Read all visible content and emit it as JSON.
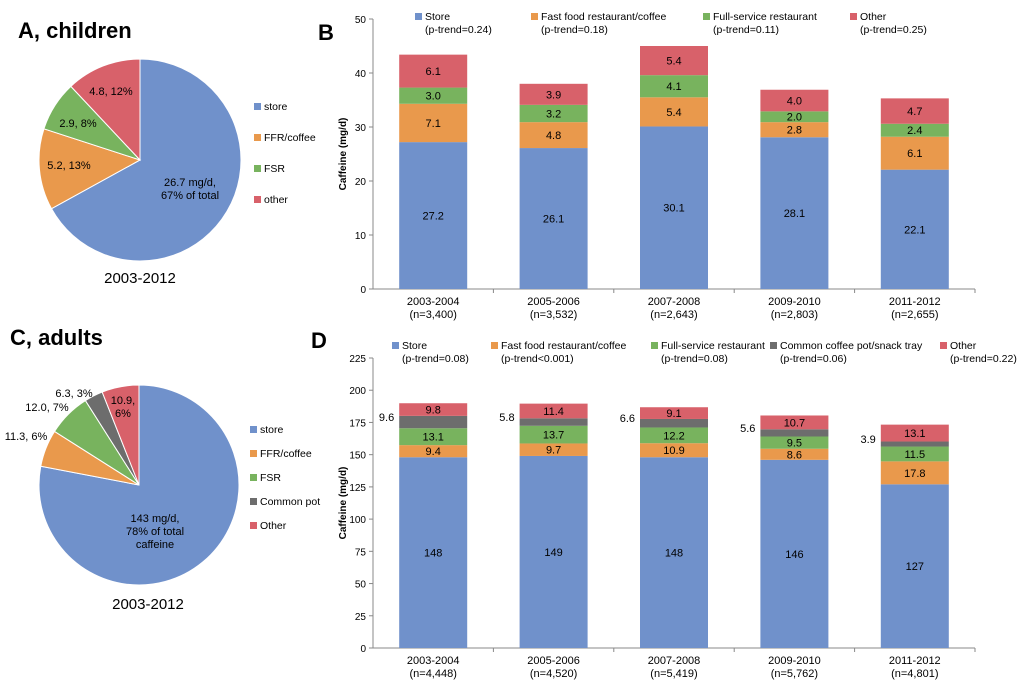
{
  "colors": {
    "store": "#7091CB",
    "ffr": "#E9994C",
    "fsr": "#78B35E",
    "common": "#6D6D6D",
    "other": "#D8616A"
  },
  "chart_data": [
    {
      "id": "A",
      "type": "pie",
      "title": "A, children",
      "caption": "2003-2012",
      "slices": [
        {
          "name": "store",
          "value": 67,
          "label": "26.7 mg/d,",
          "label2": "67% of total",
          "color_key": "store"
        },
        {
          "name": "FFR/coffee",
          "value": 13,
          "label": "5.2, 13%",
          "color_key": "ffr"
        },
        {
          "name": "FSR",
          "value": 8,
          "label": "2.9, 8%",
          "color_key": "fsr"
        },
        {
          "name": "other",
          "value": 12,
          "label": "4.8, 12%",
          "color_key": "other"
        }
      ],
      "legend": [
        "store",
        "FFR/coffee",
        "FSR",
        "other"
      ]
    },
    {
      "id": "B",
      "type": "bar",
      "stacked": true,
      "title": "B",
      "ylabel": "Caffeine (mg/d)",
      "ylim": [
        0,
        50
      ],
      "yticks": [
        0,
        10,
        20,
        30,
        40,
        50
      ],
      "categories": [
        "2003-2004",
        "2005-2006",
        "2007-2008",
        "2009-2010",
        "2011-2012"
      ],
      "category_ns": [
        "(n=3,400)",
        "(n=3,532)",
        "(n=2,643)",
        "(n=2,803)",
        "(n=2,655)"
      ],
      "series": [
        {
          "name": "Store",
          "trend": "(p-trend=0.24)",
          "color_key": "store",
          "values": [
            27.2,
            26.1,
            30.1,
            28.1,
            22.1
          ]
        },
        {
          "name": "Fast food restaurant/coffee",
          "trend": "(p-trend=0.18)",
          "color_key": "ffr",
          "values": [
            7.1,
            4.8,
            5.4,
            2.8,
            6.1
          ]
        },
        {
          "name": "Full-service restaurant",
          "trend": "(p-trend=0.11)",
          "color_key": "fsr",
          "values": [
            3.0,
            3.2,
            4.1,
            2.0,
            2.4
          ]
        },
        {
          "name": "Other",
          "trend": "(p-trend=0.25)",
          "color_key": "other",
          "values": [
            6.1,
            3.9,
            5.4,
            4.0,
            4.7
          ]
        }
      ]
    },
    {
      "id": "C",
      "type": "pie",
      "title": "C, adults",
      "caption": "2003-2012",
      "slices": [
        {
          "name": "store",
          "value": 78,
          "label": "143 mg/d,",
          "label2": "78% of total",
          "label3": "caffeine",
          "color_key": "store"
        },
        {
          "name": "FFR/coffee",
          "value": 6,
          "label": "11.3, 6%",
          "color_key": "ffr"
        },
        {
          "name": "FSR",
          "value": 7,
          "label": "12.0, 7%",
          "color_key": "fsr"
        },
        {
          "name": "Common pot",
          "value": 3,
          "label": "6.3, 3%",
          "color_key": "common"
        },
        {
          "name": "Other",
          "value": 6,
          "label": "10.9,",
          "label2": "6%",
          "color_key": "other"
        }
      ],
      "legend": [
        "store",
        "FFR/coffee",
        "FSR",
        "Common pot",
        "Other"
      ]
    },
    {
      "id": "D",
      "type": "bar",
      "stacked": true,
      "title": "D",
      "ylabel": "Caffeine (mg/d)",
      "ylim": [
        0,
        225
      ],
      "yticks": [
        0,
        25,
        50,
        75,
        100,
        125,
        150,
        175,
        200,
        225
      ],
      "categories": [
        "2003-2004",
        "2005-2006",
        "2007-2008",
        "2009-2010",
        "2011-2012"
      ],
      "category_ns": [
        "(n=4,448)",
        "(n=4,520)",
        "(n=5,419)",
        "(n=5,762)",
        "(n=4,801)"
      ],
      "series": [
        {
          "name": "Store",
          "trend": "(p-trend=0.08)",
          "color_key": "store",
          "values": [
            148,
            149,
            148,
            146,
            127
          ]
        },
        {
          "name": "Fast food restaurant/coffee",
          "trend": "(p-trend<0.001)",
          "color_key": "ffr",
          "values": [
            9.4,
            9.7,
            10.9,
            8.6,
            17.8
          ]
        },
        {
          "name": "Full-service restaurant",
          "trend": "(p-trend=0.08)",
          "color_key": "fsr",
          "values": [
            13.1,
            13.7,
            12.2,
            9.5,
            11.5
          ]
        },
        {
          "name": "Common coffee pot/snack tray",
          "trend": "(p-trend=0.06)",
          "color_key": "common",
          "values": [
            9.6,
            5.8,
            6.6,
            5.6,
            3.9
          ],
          "label_outside": true
        },
        {
          "name": "Other",
          "trend": "(p-trend=0.22)",
          "color_key": "other",
          "values": [
            9.8,
            11.4,
            9.1,
            10.7,
            13.1
          ]
        }
      ]
    }
  ]
}
